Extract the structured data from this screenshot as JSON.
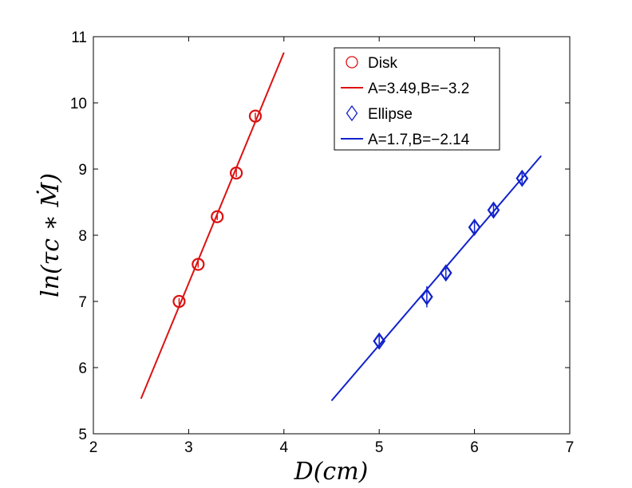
{
  "chart_data": {
    "type": "scatter",
    "title": "",
    "xlabel": "D(cm)",
    "ylabel": "ln(τc ∗ Ṁ)",
    "xlim": [
      2,
      7
    ],
    "ylim": [
      5,
      11
    ],
    "xticks": [
      "2",
      "3",
      "4",
      "5",
      "6",
      "7"
    ],
    "yticks": [
      "5",
      "6",
      "7",
      "8",
      "9",
      "10",
      "11"
    ],
    "grid": false,
    "legend_position": "top-right",
    "series": [
      {
        "name": "Disk",
        "kind": "markers",
        "marker": "circle",
        "color": "#dd1111",
        "points": [
          {
            "x": 2.9,
            "y": 7.0,
            "err": 0.05
          },
          {
            "x": 3.1,
            "y": 7.56,
            "err": 0.05
          },
          {
            "x": 3.3,
            "y": 8.28,
            "err": 0.05
          },
          {
            "x": 3.5,
            "y": 8.94,
            "err": 0.06
          },
          {
            "x": 3.7,
            "y": 9.8,
            "err": 0.05
          }
        ]
      },
      {
        "name": "A=3.49,B=−3.2",
        "kind": "line",
        "color": "#dd1111",
        "x": [
          2.5,
          4.0
        ],
        "y": [
          5.53,
          10.76
        ]
      },
      {
        "name": "Ellipse",
        "kind": "markers",
        "marker": "diamond",
        "color": "#1122cc",
        "points": [
          {
            "x": 5.0,
            "y": 6.4,
            "err": 0.1
          },
          {
            "x": 5.5,
            "y": 7.07,
            "err": 0.16
          },
          {
            "x": 5.7,
            "y": 7.43,
            "err": 0.09
          },
          {
            "x": 6.0,
            "y": 8.12,
            "err": 0.1
          },
          {
            "x": 6.2,
            "y": 8.38,
            "err": 0.09
          },
          {
            "x": 6.5,
            "y": 8.86,
            "err": 0.08
          }
        ]
      },
      {
        "name": "A=1.7,B=−2.14",
        "kind": "line",
        "color": "#1122cc",
        "x": [
          4.5,
          6.7
        ],
        "y": [
          5.5,
          9.2
        ]
      }
    ]
  }
}
